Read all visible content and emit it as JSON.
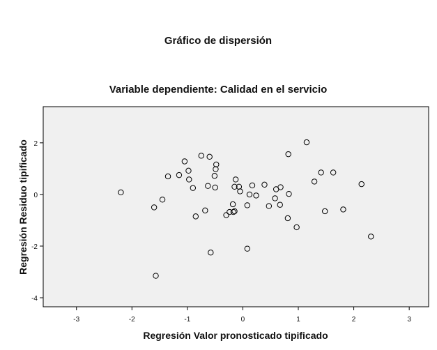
{
  "chart_data": {
    "type": "scatter",
    "title": "Gráfico de dispersión",
    "subtitle": "Variable dependiente: Calidad en el servicio",
    "xlabel": "Regresión Valor pronosticado tipificado",
    "ylabel": "Regresión Residuo tipificado",
    "xlim": [
      -3.6,
      3.35
    ],
    "ylim": [
      -4.35,
      3.4
    ],
    "xticks": [
      -3,
      -2,
      -1,
      0,
      1,
      2,
      3
    ],
    "yticks": [
      2,
      0,
      -2,
      -4
    ],
    "xtick_labels": [
      "-3",
      "-2",
      "-1",
      "0",
      "1",
      "2",
      "3"
    ],
    "ytick_labels": [
      "2",
      "0",
      "-2",
      "-4"
    ],
    "grid": false,
    "plot_background": "#f0f0f0",
    "marker": "hollow-circle",
    "points": [
      {
        "x": -2.2,
        "y": 0.08
      },
      {
        "x": -1.6,
        "y": -0.5
      },
      {
        "x": -1.45,
        "y": -0.2
      },
      {
        "x": -1.35,
        "y": 0.7
      },
      {
        "x": -1.15,
        "y": 0.75
      },
      {
        "x": -1.05,
        "y": 1.28
      },
      {
        "x": -0.98,
        "y": 0.92
      },
      {
        "x": -0.97,
        "y": 0.58
      },
      {
        "x": -0.9,
        "y": 0.25
      },
      {
        "x": -0.85,
        "y": -0.85
      },
      {
        "x": -0.75,
        "y": 1.5
      },
      {
        "x": -0.68,
        "y": -0.62
      },
      {
        "x": -0.63,
        "y": 0.33
      },
      {
        "x": -0.6,
        "y": 1.46
      },
      {
        "x": -0.58,
        "y": -2.25
      },
      {
        "x": -0.51,
        "y": 0.72
      },
      {
        "x": -0.5,
        "y": 0.27
      },
      {
        "x": -0.49,
        "y": 0.98
      },
      {
        "x": -0.48,
        "y": 1.16
      },
      {
        "x": -0.3,
        "y": -0.8
      },
      {
        "x": -0.24,
        "y": -0.68
      },
      {
        "x": -0.18,
        "y": -0.38
      },
      {
        "x": -0.17,
        "y": -0.68
      },
      {
        "x": -0.15,
        "y": -0.65
      },
      {
        "x": -0.15,
        "y": 0.3
      },
      {
        "x": -0.13,
        "y": 0.58
      },
      {
        "x": -0.07,
        "y": 0.3
      },
      {
        "x": -0.05,
        "y": 0.12
      },
      {
        "x": 0.08,
        "y": -2.1
      },
      {
        "x": 0.08,
        "y": -0.42
      },
      {
        "x": 0.12,
        "y": 0.0
      },
      {
        "x": 0.17,
        "y": 0.35
      },
      {
        "x": 0.24,
        "y": -0.04
      },
      {
        "x": 0.39,
        "y": 0.38
      },
      {
        "x": 0.47,
        "y": -0.45
      },
      {
        "x": 0.58,
        "y": -0.15
      },
      {
        "x": 0.6,
        "y": 0.2
      },
      {
        "x": 0.67,
        "y": -0.4
      },
      {
        "x": 0.68,
        "y": 0.28
      },
      {
        "x": 0.81,
        "y": -0.92
      },
      {
        "x": 0.82,
        "y": 1.56
      },
      {
        "x": 0.83,
        "y": 0.02
      },
      {
        "x": 0.97,
        "y": -1.27
      },
      {
        "x": 1.15,
        "y": 2.02
      },
      {
        "x": 1.29,
        "y": 0.5
      },
      {
        "x": 1.41,
        "y": 0.85
      },
      {
        "x": 1.48,
        "y": -0.65
      },
      {
        "x": 1.63,
        "y": 0.85
      },
      {
        "x": 1.81,
        "y": -0.58
      },
      {
        "x": 2.14,
        "y": 0.4
      },
      {
        "x": 2.31,
        "y": -1.63
      },
      {
        "x": -1.57,
        "y": -3.15
      }
    ]
  }
}
